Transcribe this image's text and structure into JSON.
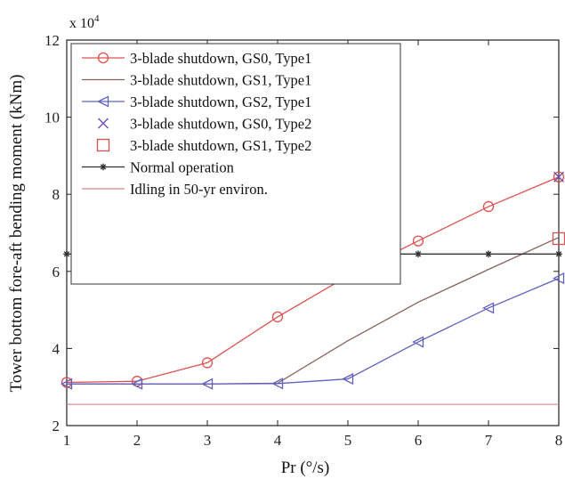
{
  "chart_data": {
    "type": "line",
    "xlabel": "Pr (°/s)",
    "ylabel": "Tower bottom fore-aft bending moment (kNm)",
    "y_scale_label": "x 10",
    "y_scale_exponent": "4",
    "xlim": [
      1,
      8
    ],
    "ylim": [
      20000,
      120000
    ],
    "x_ticks": [
      1,
      2,
      3,
      4,
      5,
      6,
      7,
      8
    ],
    "y_ticks": [
      20000,
      40000,
      60000,
      80000,
      100000,
      120000
    ],
    "y_tick_labels": [
      "2",
      "4",
      "6",
      "8",
      "10",
      "12"
    ],
    "grid": false,
    "legend_position": "top-left",
    "series": [
      {
        "name": "3-blade shutdown, GS0, Type1",
        "color": "#e05050",
        "marker": "circle",
        "x": [
          1,
          2,
          3,
          4,
          5,
          6,
          7,
          8
        ],
        "y": [
          31200,
          31500,
          36300,
          48200,
          58800,
          67900,
          76800,
          84500
        ]
      },
      {
        "name": "3-blade shutdown, GS1, Type1",
        "color": "#8a6060",
        "marker": "none",
        "x": [
          1,
          2,
          3,
          4,
          5,
          6,
          7,
          8
        ],
        "y": [
          30800,
          30800,
          30800,
          31000,
          42000,
          52000,
          60500,
          68800
        ]
      },
      {
        "name": "3-blade shutdown, GS2, Type1",
        "color": "#6060c0",
        "marker": "triangle-left",
        "x": [
          1,
          2,
          3,
          4,
          5,
          6,
          7,
          8
        ],
        "y": [
          30800,
          30800,
          30800,
          30900,
          32100,
          41700,
          50500,
          58200
        ]
      },
      {
        "name": "3-blade shutdown, GS0, Type2",
        "color": "#7050b0",
        "marker": "x",
        "x": [
          8
        ],
        "y": [
          84500
        ]
      },
      {
        "name": "3-blade shutdown, GS1, Type2",
        "color": "#e05050",
        "marker": "square",
        "x": [
          8
        ],
        "y": [
          68500
        ]
      },
      {
        "name": "Normal operation",
        "color": "#333333",
        "marker": "star",
        "x": [
          1,
          2,
          3,
          4,
          5,
          6,
          7,
          8
        ],
        "y": [
          64500,
          64500,
          64500,
          64500,
          64500,
          64500,
          64500,
          64500
        ]
      },
      {
        "name": "Idling in 50-yr environ.",
        "color": "#e08080",
        "marker": "none",
        "x": [
          1,
          8
        ],
        "y": [
          25500,
          25500
        ]
      }
    ]
  }
}
